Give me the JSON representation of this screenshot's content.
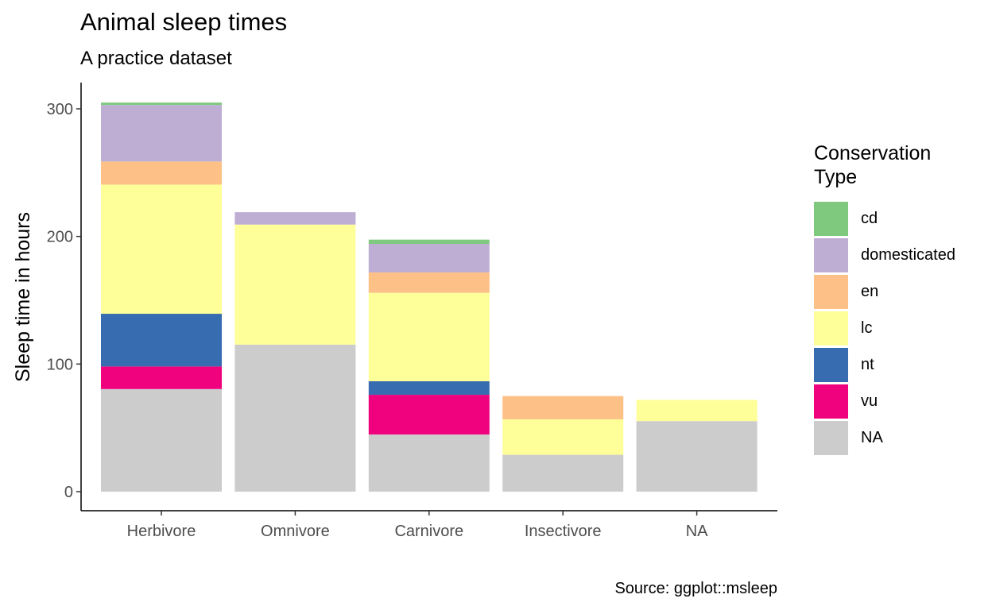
{
  "chart_data": {
    "type": "bar",
    "stacked": true,
    "title": "Animal sleep times",
    "subtitle": "A practice dataset",
    "xlabel": "",
    "ylabel": "Sleep time in hours",
    "caption": "Source: ggplot::msleep",
    "categories": [
      "Herbivore",
      "Omnivore",
      "Carnivore",
      "Insectivore",
      "NA"
    ],
    "ylim": [
      0,
      320
    ],
    "yticks": [
      0,
      100,
      200,
      300
    ],
    "legend_title": "Conservation\nType",
    "legend_position": "right",
    "grid": false,
    "series": [
      {
        "name": "NA",
        "color": "#cccccc",
        "values": [
          80.4,
          115.2,
          44.8,
          28.9,
          55.3
        ]
      },
      {
        "name": "vu",
        "color": "#f0027f",
        "values": [
          17.7,
          0,
          31.1,
          0,
          0
        ]
      },
      {
        "name": "nt",
        "color": "#386cb0",
        "values": [
          41.3,
          0,
          10.6,
          0,
          0
        ]
      },
      {
        "name": "lc",
        "color": "#ffff99",
        "values": [
          101.2,
          94.1,
          69.3,
          27.8,
          16.6
        ]
      },
      {
        "name": "en",
        "color": "#fdc086",
        "values": [
          18.1,
          0,
          16.0,
          18.2,
          0
        ]
      },
      {
        "name": "domesticated",
        "color": "#beaed4",
        "values": [
          44.3,
          9.7,
          22.4,
          0,
          0
        ]
      },
      {
        "name": "cd",
        "color": "#7fc97f",
        "values": [
          1.9,
          0,
          3.3,
          0,
          0
        ]
      }
    ],
    "legend_order": [
      "cd",
      "domesticated",
      "en",
      "lc",
      "nt",
      "vu",
      "NA"
    ]
  }
}
